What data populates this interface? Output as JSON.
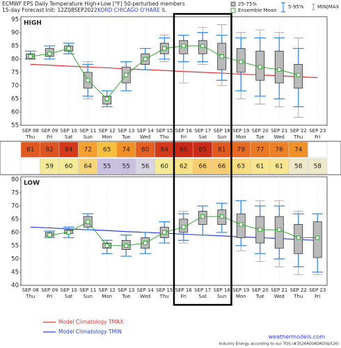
{
  "header": {
    "title": "ECMWF EPS Daily Temperature High+Low [°F] 50-perturbed members",
    "init": "15-day Forecast Init: 12Z08SEP2022",
    "station": "KORD CHICAGO O'HARE IL"
  },
  "legend": {
    "box": "25-75%",
    "mean": "Ensemble Mean",
    "whisker": "5-95%",
    "minmax": "MIN|MAX"
  },
  "footer": {
    "site": "weathermodels.com",
    "note": "Industry Energy according to our TOS (#3526R0UKORD0p526)"
  },
  "table_colors": {
    "high": [
      "#e05a20",
      "#de5420",
      "#d43a1a",
      "#f5a030",
      "#f7c040",
      "#f09028",
      "#e56020",
      "#d43a1a",
      "#c82a18",
      "#c82a18",
      "#e05a20",
      "#e86a22",
      "#ec7a25",
      "#ee8026",
      "#f09028",
      null
    ],
    "low": [
      null,
      "#f5eb9a",
      "#f5ea95",
      "#f7d67a",
      "#c9c0e0",
      "#c9c0e0",
      "#d8d4e0",
      "#f5ea95",
      "#f7e085",
      "#f7cd70",
      "#f7cd70",
      "#f7dc80",
      "#f7e590",
      "#f7e590",
      "#ede8c8",
      "#ede8c8"
    ]
  },
  "chart_data": [
    {
      "type": "box",
      "label": "HIGH",
      "categories": [
        "SEP 08",
        "SEP 09",
        "SEP 10",
        "SEP 11",
        "SEP 12",
        "SEP 13",
        "SEP 14",
        "SEP 15",
        "SEP 16",
        "SEP 17",
        "SEP 18",
        "SEP 19",
        "SEP 20",
        "SEP 21",
        "SEP 22",
        "SEP 23"
      ],
      "weekdays": [
        "Thu",
        "Fri",
        "Sat",
        "Sun",
        "Mon",
        "Tue",
        "Wed",
        "Thu",
        "Fri",
        "Sat",
        "Sun",
        "Mon",
        "Tue",
        "Wed",
        "Thu",
        "Fri"
      ],
      "ylim": [
        55,
        96
      ],
      "yticks": [
        55,
        60,
        65,
        70,
        75,
        80,
        85,
        90,
        95
      ],
      "boxes": {
        "q25": [
          80,
          81,
          83,
          69,
          63,
          71,
          78,
          82,
          82,
          82,
          76,
          75,
          72,
          71,
          69,
          null
        ],
        "q75": [
          82,
          84,
          85,
          75,
          66,
          77,
          82,
          86,
          87,
          87,
          86,
          84,
          83,
          83,
          78,
          null
        ],
        "p5": [
          80,
          80,
          82,
          66,
          62,
          68,
          76,
          80,
          79,
          79,
          72,
          68,
          66,
          65,
          62,
          null
        ],
        "p95": [
          83,
          85,
          86,
          78,
          68,
          79,
          84,
          88,
          89,
          90,
          89,
          88,
          88,
          88,
          84,
          null
        ],
        "min": [
          80,
          80,
          82,
          65,
          62,
          68,
          76,
          79,
          71,
          78,
          70,
          65,
          63,
          62,
          58,
          null
        ],
        "max": [
          83,
          85,
          86,
          79,
          68,
          79,
          84,
          89,
          89,
          92,
          93,
          90,
          91,
          90,
          88,
          null
        ]
      },
      "mean": {
        "color": "#2eaa2e",
        "values": [
          81,
          82,
          84,
          72,
          65,
          74,
          80,
          84,
          85,
          85,
          81,
          79,
          77,
          76,
          74,
          null
        ]
      },
      "climatology": {
        "name": "Model Climatology TMAX",
        "color": "#e03030",
        "values": [
          78,
          77.7,
          77.3,
          77,
          76.7,
          76.3,
          76,
          75.7,
          75.3,
          75,
          74.7,
          74.3,
          74,
          73.7,
          73.3,
          73
        ]
      }
    },
    {
      "type": "box",
      "label": "LOW",
      "categories": [
        "SEP 08",
        "SEP 09",
        "SEP 10",
        "SEP 11",
        "SEP 12",
        "SEP 13",
        "SEP 14",
        "SEP 15",
        "SEP 16",
        "SEP 17",
        "SEP 18",
        "SEP 19",
        "SEP 20",
        "SEP 21",
        "SEP 22",
        "SEP 23"
      ],
      "weekdays": [
        "Thu",
        "Fri",
        "Sat",
        "Sun",
        "Mon",
        "Tue",
        "Wed",
        "Thu",
        "Fri",
        "Sat",
        "Sun",
        "Mon",
        "Tue",
        "Wed",
        "Thu",
        "Fri"
      ],
      "ylim": [
        40,
        81
      ],
      "yticks": [
        40,
        45,
        50,
        55,
        60,
        65,
        70,
        75,
        80
      ],
      "boxes": {
        "q25": [
          null,
          58.5,
          59.5,
          62,
          54,
          53.5,
          54,
          58,
          60,
          63,
          63,
          58,
          56,
          54,
          52,
          50.5
        ],
        "q75": [
          null,
          60,
          61,
          66,
          56,
          57,
          58,
          62,
          65,
          68,
          68.5,
          67,
          66,
          66,
          63,
          64
        ],
        "p5": [
          null,
          58,
          58,
          61,
          52,
          51,
          52,
          56,
          57,
          59,
          60,
          55,
          52,
          50,
          47,
          45
        ],
        "p95": [
          null,
          60.5,
          62,
          67,
          57,
          59,
          60,
          64,
          67,
          70,
          71,
          72,
          70,
          70,
          67,
          67
        ],
        "min": [
          null,
          58,
          58,
          61,
          52,
          51,
          52,
          56,
          56,
          59,
          60,
          53,
          49,
          47,
          44,
          44
        ],
        "max": [
          null,
          60.5,
          62,
          67,
          57,
          59,
          60,
          64,
          68,
          70,
          71,
          72,
          72,
          72,
          68,
          67
        ]
      },
      "mean": {
        "color": "#2eaa2e",
        "values": [
          null,
          59,
          60,
          64,
          55,
          55,
          56,
          60,
          62,
          66,
          66,
          63,
          61,
          61,
          58,
          58
        ]
      },
      "climatology": {
        "name": "Model Climatology TMIN",
        "color": "#2a3ee0",
        "values": [
          62,
          61.7,
          61.3,
          61,
          60.7,
          60.3,
          60,
          59.7,
          59.3,
          59,
          58.7,
          58.3,
          58,
          57.7,
          57.3,
          57
        ]
      }
    }
  ]
}
